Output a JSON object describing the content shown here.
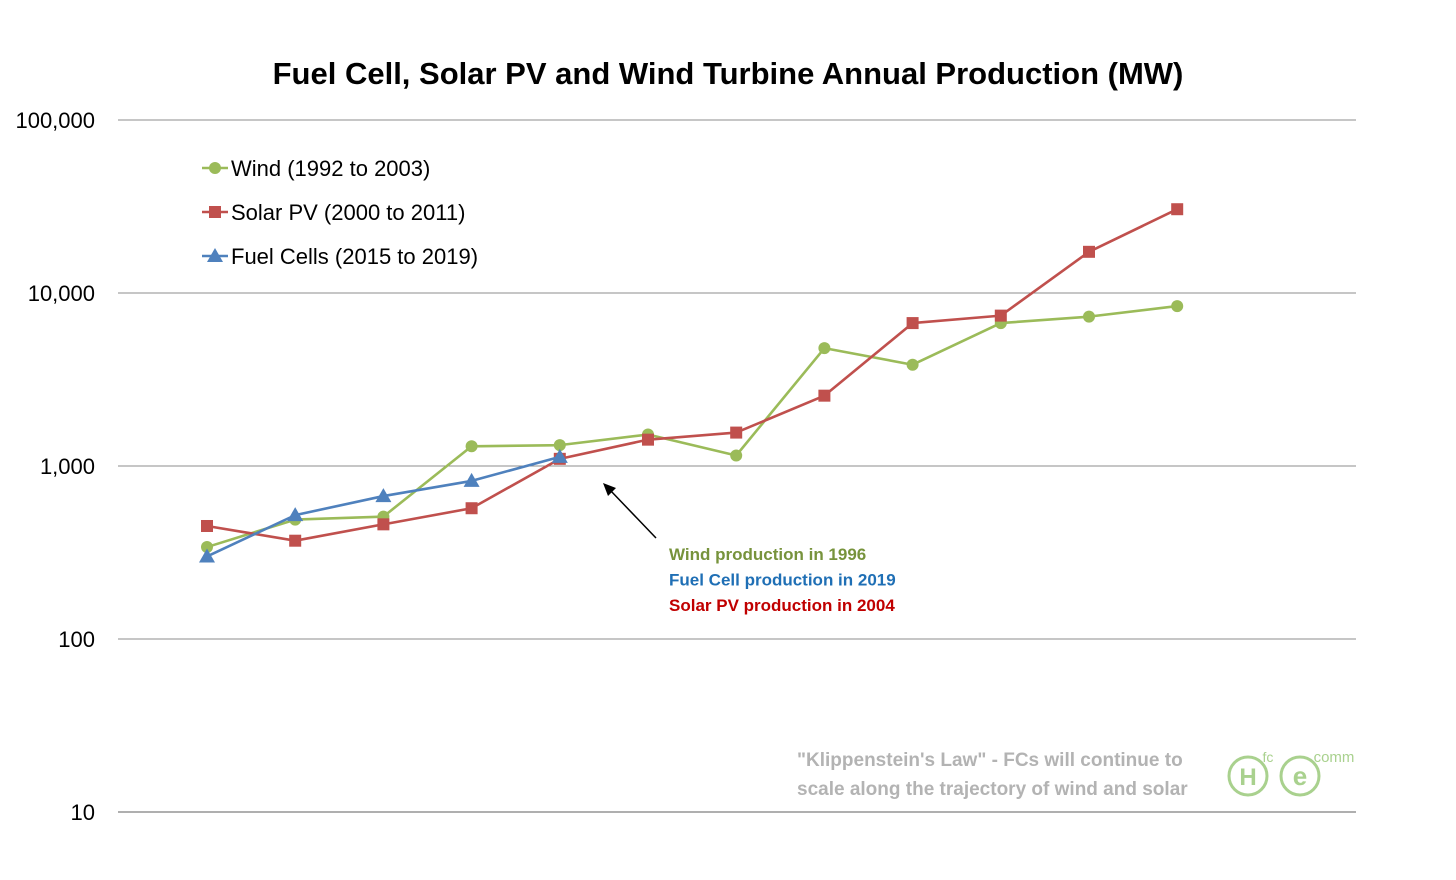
{
  "chart_data": {
    "type": "line",
    "title": "Fuel Cell, Solar PV and Wind Turbine Annual Production (MW)",
    "xlabel": "",
    "ylabel": "",
    "yscale": "log",
    "ylim": [
      10,
      100000
    ],
    "y_ticks": [
      {
        "value": 10,
        "label": "10"
      },
      {
        "value": 100,
        "label": "100"
      },
      {
        "value": 1000,
        "label": "1,000"
      },
      {
        "value": 10000,
        "label": "10,000"
      },
      {
        "value": 100000,
        "label": "100,000"
      }
    ],
    "grid": true,
    "legend_position": "top-left",
    "series": [
      {
        "name": "Wind (1992 to 2003)",
        "color": "#9bbb59",
        "marker": "circle",
        "values": [
          340,
          490,
          510,
          1300,
          1320,
          1520,
          1150,
          4800,
          3850,
          6700,
          7300,
          8400
        ]
      },
      {
        "name": "Solar PV (2000 to 2011)",
        "color": "#c0504d",
        "marker": "square",
        "values": [
          450,
          370,
          460,
          570,
          1100,
          1420,
          1560,
          2550,
          6700,
          7400,
          17300,
          30500
        ]
      },
      {
        "name": "Fuel Cells (2015 to 2019)",
        "color": "#4f81bd",
        "marker": "triangle",
        "values": [
          300,
          520,
          670,
          820,
          1130
        ]
      }
    ],
    "annotations": [
      {
        "text": "Wind production in 1996",
        "color": "#77933c"
      },
      {
        "text": "Fuel Cell production in 2019",
        "color": "#1f6fb5"
      },
      {
        "text": "Solar PV production in 2004",
        "color": "#c00000"
      }
    ],
    "note_lines": [
      "\"Klippenstein's Law\" - FCs will continue to",
      "scale along the trajectory of wind and solar"
    ],
    "logo": {
      "letters": [
        "H",
        "e"
      ],
      "superscripts": [
        "fc",
        "comm"
      ]
    }
  }
}
